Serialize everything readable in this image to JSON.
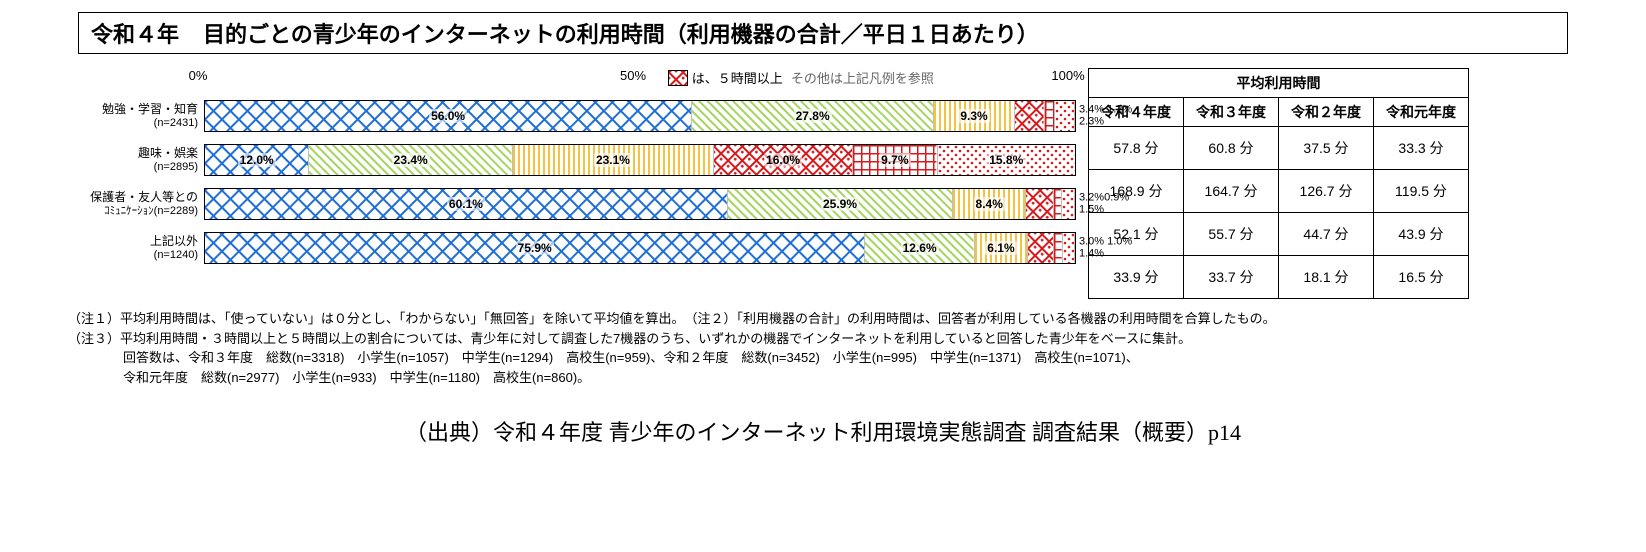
{
  "title": {
    "year": "令和４年",
    "main": "目的ごとの青少年のインターネットの利用時間（利用機器の合計／平日１日あたり）"
  },
  "axis": {
    "ticks": [
      {
        "pos": 0,
        "label": "0%"
      },
      {
        "pos": 50,
        "label": "50%"
      },
      {
        "pos": 100,
        "label": "100%"
      }
    ]
  },
  "legend": {
    "swatch_label": "は、５時間以上",
    "note": "その他は上記凡例を参照"
  },
  "patterns": {
    "p1": {
      "type": "diag-check",
      "color": "#1f6fd6"
    },
    "p2": {
      "type": "diag-lines",
      "color": "#8bc53f"
    },
    "p3": {
      "type": "vert-lines",
      "color": "#f5a623"
    },
    "p4": {
      "type": "vert-lines-bold",
      "color": "#f5a623"
    },
    "p5": {
      "type": "cross-dots",
      "color": "#d7191c"
    },
    "p6": {
      "type": "grid",
      "color": "#d7191c"
    },
    "p7": {
      "type": "dots",
      "color": "#d7191c"
    }
  },
  "rows": [
    {
      "label": "勉強・学習・知育",
      "sub": "(n=2431)",
      "segments": [
        {
          "v": 56.0,
          "p": "p1",
          "t": "56.0%"
        },
        {
          "v": 27.8,
          "p": "p2",
          "t": "27.8%"
        },
        {
          "v": 9.3,
          "p": "p3",
          "t": "9.3%"
        },
        {
          "v": 3.4,
          "p": "p5",
          "t": ""
        },
        {
          "v": 1.2,
          "p": "p6",
          "t": ""
        },
        {
          "v": 2.3,
          "p": "p7",
          "t": ""
        }
      ],
      "callouts": [
        "3.4% 1.2%",
        "2.3%"
      ]
    },
    {
      "label": "趣味・娯楽",
      "sub": "(n=2895)",
      "segments": [
        {
          "v": 12.0,
          "p": "p1",
          "t": "12.0%"
        },
        {
          "v": 23.4,
          "p": "p2",
          "t": "23.4%"
        },
        {
          "v": 23.1,
          "p": "p3",
          "t": "23.1%"
        },
        {
          "v": 16.0,
          "p": "p5",
          "t": "16.0%"
        },
        {
          "v": 9.7,
          "p": "p6",
          "t": "9.7%"
        },
        {
          "v": 15.8,
          "p": "p7",
          "t": "15.8%"
        }
      ],
      "callouts": []
    },
    {
      "label": "保護者・友人等との",
      "sub": "ｺﾐｭﾆｹｰｼｮﾝ(n=2289)",
      "segments": [
        {
          "v": 60.1,
          "p": "p1",
          "t": "60.1%"
        },
        {
          "v": 25.9,
          "p": "p2",
          "t": "25.9%"
        },
        {
          "v": 8.4,
          "p": "p3",
          "t": "8.4%"
        },
        {
          "v": 3.2,
          "p": "p5",
          "t": ""
        },
        {
          "v": 0.9,
          "p": "p6",
          "t": ""
        },
        {
          "v": 1.5,
          "p": "p7",
          "t": ""
        }
      ],
      "callouts": [
        "3.2%0.9%",
        "1.5%"
      ]
    },
    {
      "label": "上記以外",
      "sub": "(n=1240)",
      "segments": [
        {
          "v": 75.9,
          "p": "p1",
          "t": "75.9%"
        },
        {
          "v": 12.6,
          "p": "p2",
          "t": "12.6%"
        },
        {
          "v": 6.1,
          "p": "p3",
          "t": "6.1%"
        },
        {
          "v": 3.0,
          "p": "p5",
          "t": ""
        },
        {
          "v": 1.0,
          "p": "p6",
          "t": ""
        },
        {
          "v": 1.4,
          "p": "p7",
          "t": ""
        }
      ],
      "callouts": [
        "3.0% 1.0%",
        "1.4%"
      ]
    }
  ],
  "table": {
    "caption": "平均利用時間",
    "columns": [
      "令和４年度",
      "令和３年度",
      "令和２年度",
      "令和元年度"
    ],
    "rows": [
      [
        "57.8 分",
        "60.8 分",
        "37.5 分",
        "33.3 分"
      ],
      [
        "168.9 分",
        "164.7 分",
        "126.7 分",
        "119.5 分"
      ],
      [
        "52.1 分",
        "55.7 分",
        "44.7 分",
        "43.9 分"
      ],
      [
        "33.9 分",
        "33.7 分",
        "18.1 分",
        "16.5 分"
      ]
    ]
  },
  "notes": [
    "（注１）平均利用時間は、「使っていない」は０分とし、「わからない」「無回答」を除いて平均値を算出。　（注２）「利用機器の合計」の利用時間は、回答者が利用している各機器の利用時間を合算したもの。",
    "（注３）平均利用時間・３時間以上と５時間以上の割合については、青少年に対して調査した7機器のうち、いずれかの機器でインターネットを利用していると回答した青少年をベースに集計。",
    "回答数は、令和３年度　総数(n=3318)　小学生(n=1057)　中学生(n=1294)　高校生(n=959)、令和２年度　総数(n=3452)　小学生(n=995)　中学生(n=1371)　高校生(n=1071)、",
    "令和元年度　総数(n=2977)　小学生(n=933)　中学生(n=1180)　高校生(n=860)。"
  ],
  "source": "（出典）令和４年度 青少年のインターネット利用環境実態調査 調査結果（概要）p14"
}
